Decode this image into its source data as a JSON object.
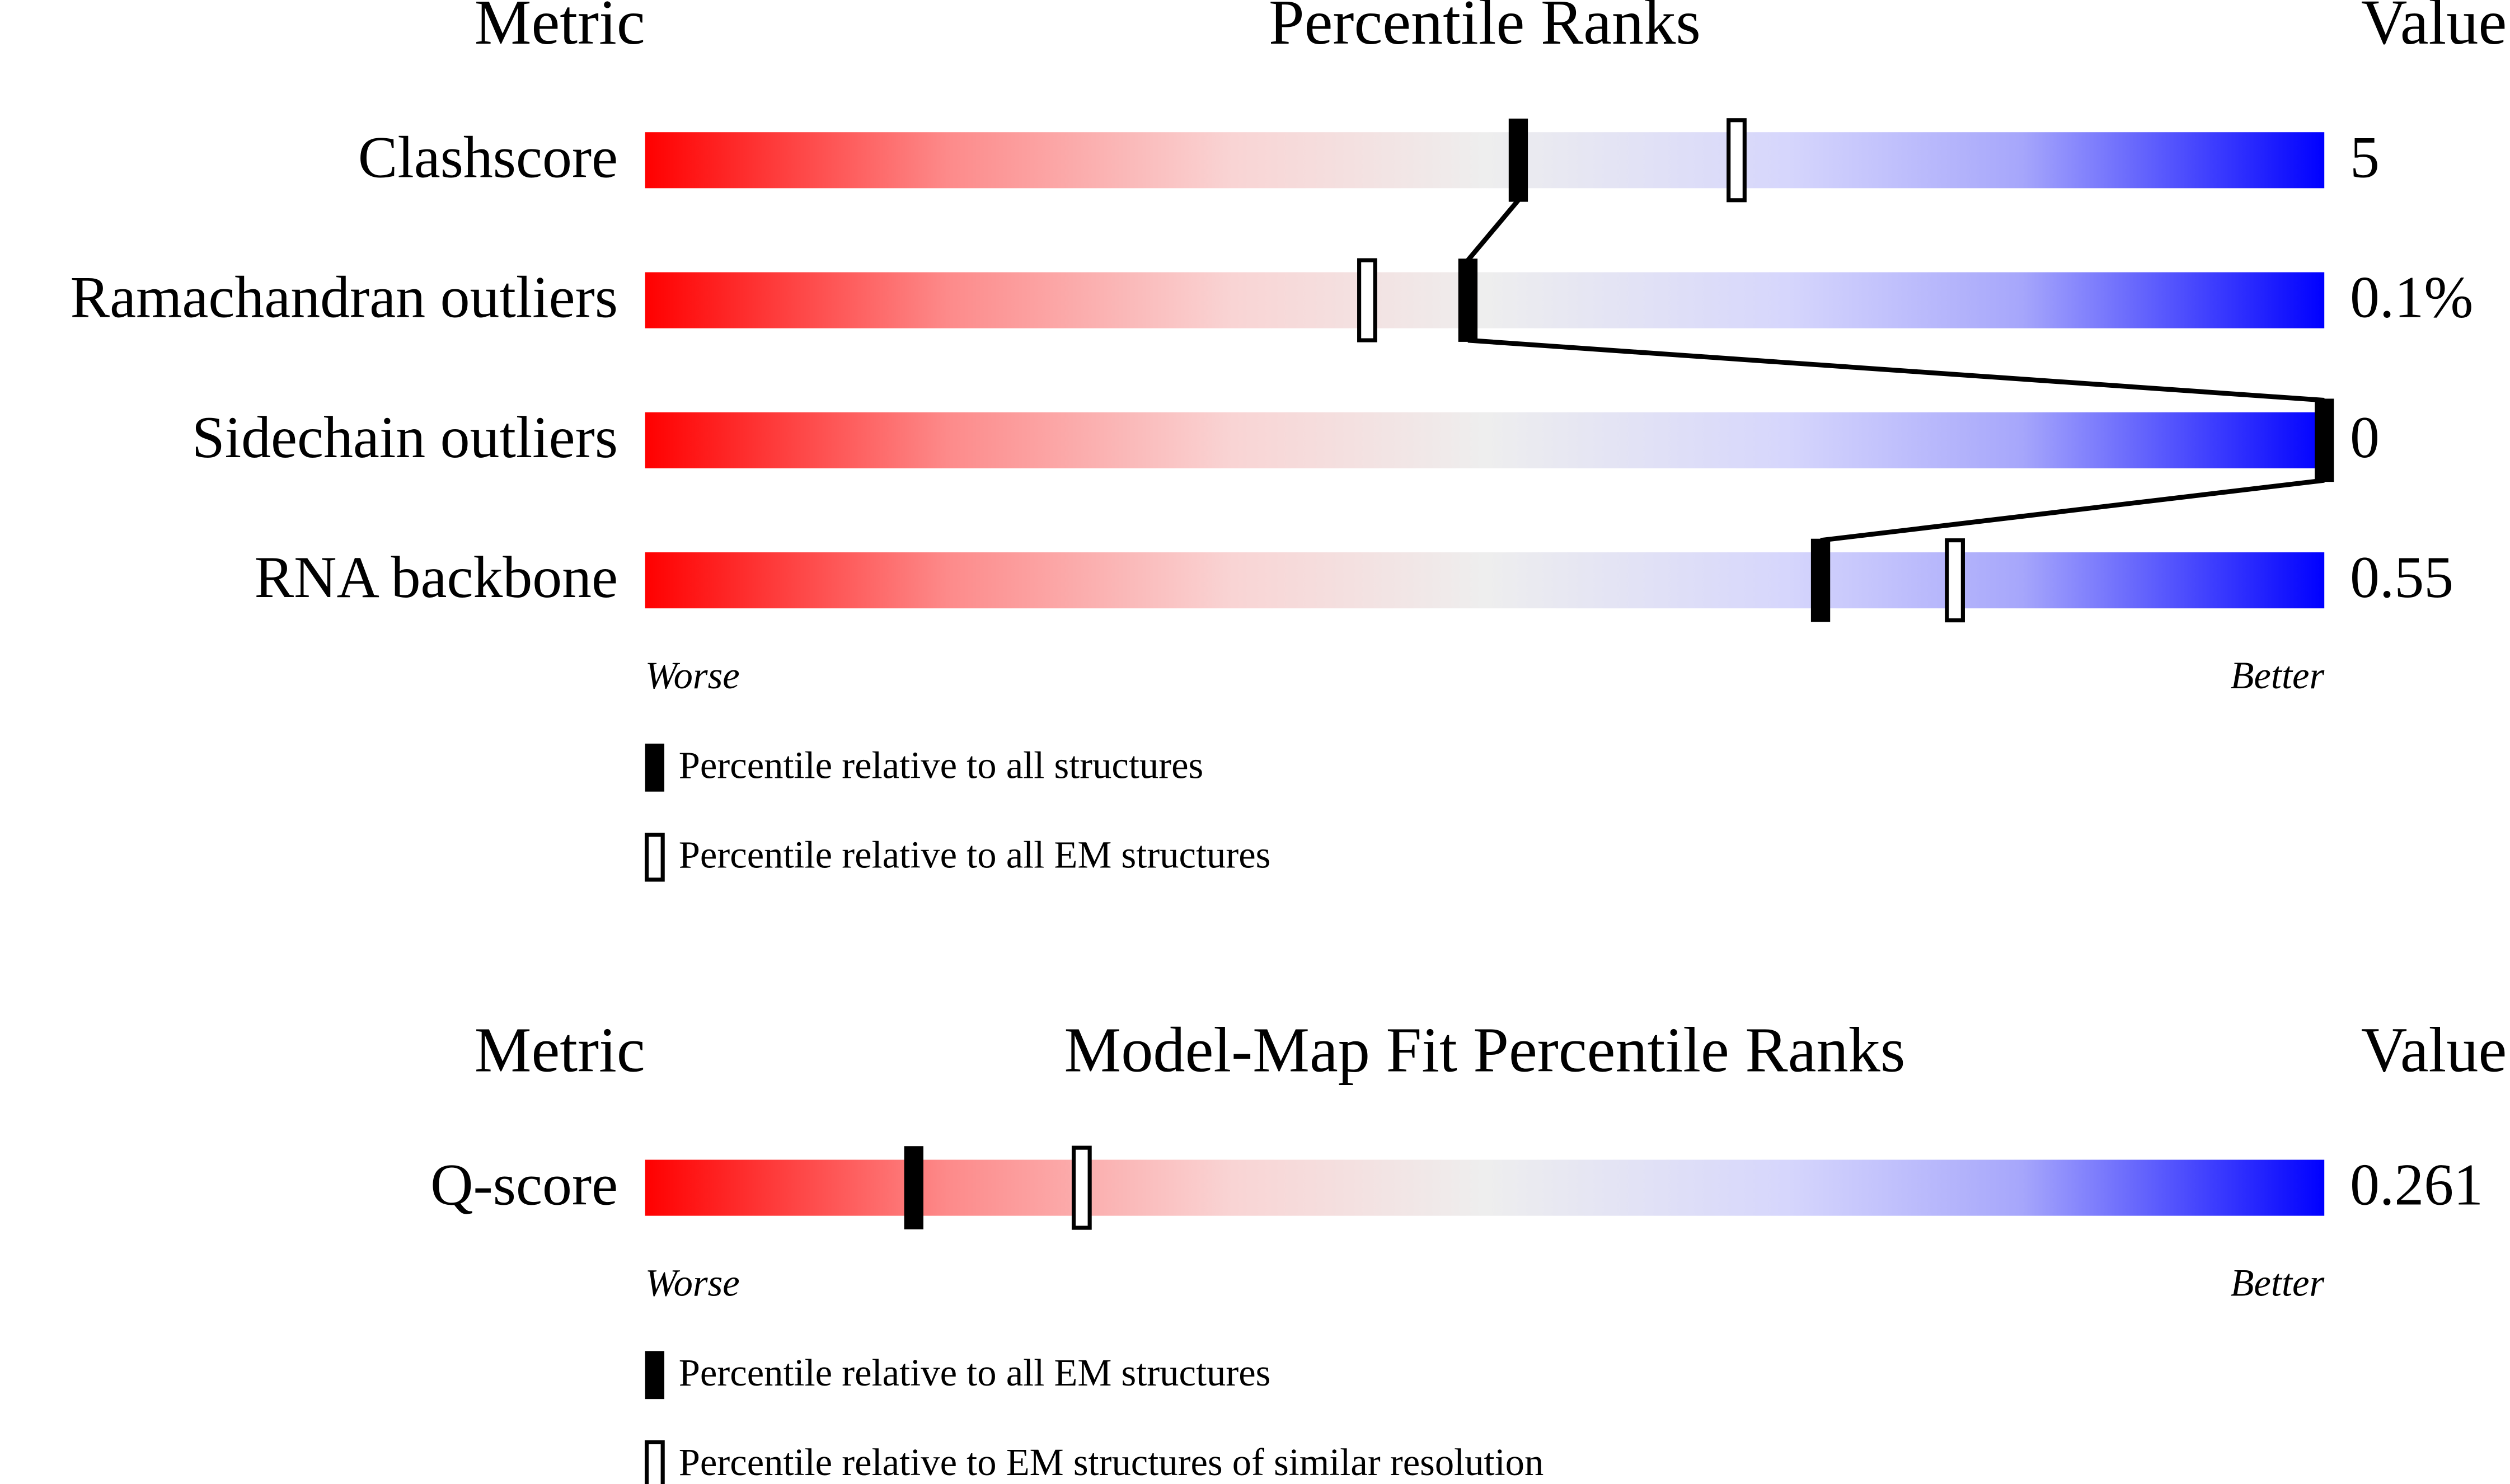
{
  "sections": [
    {
      "headers": {
        "metric": "Metric",
        "title": "Percentile Ranks",
        "value": "Value"
      },
      "rows": [
        {
          "metric": "Clashscore",
          "value": "5",
          "percentiles": [
            52,
            65
          ]
        },
        {
          "metric": "Ramachandran outliers",
          "value": "0.1%",
          "percentiles": [
            49,
            43
          ]
        },
        {
          "metric": "Sidechain outliers",
          "value": "0",
          "percentiles": [
            100
          ]
        },
        {
          "metric": "RNA backbone",
          "value": "0.55",
          "percentiles": [
            70,
            78
          ]
        }
      ],
      "scale": {
        "worse": "Worse",
        "better": "Better"
      },
      "legend": [
        {
          "label": "Percentile relative to all structures",
          "style": "filled"
        },
        {
          "label": "Percentile relative to all EM structures",
          "style": "outline"
        }
      ]
    },
    {
      "headers": {
        "metric": "Metric",
        "title": "Model-Map Fit Percentile Ranks",
        "value": "Value"
      },
      "rows": [
        {
          "metric": "Q-score",
          "value": "0.261",
          "percentiles": [
            16,
            26
          ]
        }
      ],
      "scale": {
        "worse": "Worse",
        "better": "Better"
      },
      "legend": [
        {
          "label": "Percentile relative to all EM structures",
          "style": "filled"
        },
        {
          "label": "Percentile relative to EM structures of similar resolution",
          "style": "outline"
        }
      ]
    }
  ]
}
